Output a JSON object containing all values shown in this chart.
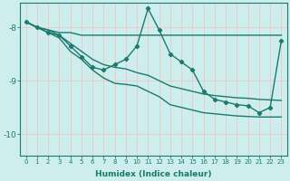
{
  "xlabel": "Humidex (Indice chaleur)",
  "background_color": "#cdeeed",
  "grid_color": "#f5c0c0",
  "line_color": "#1a7a6e",
  "xlim": [
    -0.5,
    23.5
  ],
  "ylim": [
    -10.4,
    -7.55
  ],
  "yticks": [
    -10,
    -9,
    -8
  ],
  "xticks": [
    0,
    1,
    2,
    3,
    4,
    5,
    6,
    7,
    8,
    9,
    10,
    11,
    12,
    13,
    14,
    15,
    16,
    17,
    18,
    19,
    20,
    21,
    22,
    23
  ],
  "series": [
    {
      "x": [
        0,
        1,
        2,
        3,
        4,
        5,
        6,
        7,
        8,
        9,
        10,
        11,
        12,
        13,
        14,
        15,
        16,
        17,
        18,
        19,
        20,
        21,
        22,
        23
      ],
      "y": [
        -7.9,
        -8.0,
        -8.05,
        -8.1,
        -8.1,
        -8.15,
        -8.15,
        -8.15,
        -8.15,
        -8.15,
        -8.15,
        -8.15,
        -8.15,
        -8.15,
        -8.15,
        -8.15,
        -8.15,
        -8.15,
        -8.15,
        -8.15,
        -8.15,
        -8.15,
        -8.15,
        -8.15
      ],
      "has_markers": false,
      "linewidth": 1.0
    },
    {
      "x": [
        0,
        1,
        2,
        3,
        4,
        5,
        6,
        7,
        8,
        9,
        10,
        11,
        12,
        13,
        14,
        15,
        16,
        17,
        18,
        19,
        20,
        21,
        22,
        23
      ],
      "y": [
        -7.9,
        -8.0,
        -8.05,
        -8.15,
        -8.3,
        -8.45,
        -8.6,
        -8.7,
        -8.75,
        -8.78,
        -8.85,
        -8.9,
        -9.0,
        -9.1,
        -9.15,
        -9.2,
        -9.25,
        -9.28,
        -9.3,
        -9.32,
        -9.33,
        -9.35,
        -9.36,
        -9.37
      ],
      "has_markers": false,
      "linewidth": 1.0
    },
    {
      "x": [
        0,
        1,
        2,
        3,
        4,
        5,
        6,
        7,
        8,
        9,
        10,
        11,
        12,
        13,
        14,
        15,
        16,
        17,
        18,
        19,
        20,
        21,
        22,
        23
      ],
      "y": [
        -7.9,
        -8.0,
        -8.1,
        -8.2,
        -8.45,
        -8.6,
        -8.8,
        -8.95,
        -9.05,
        -9.07,
        -9.1,
        -9.2,
        -9.3,
        -9.45,
        -9.5,
        -9.55,
        -9.6,
        -9.62,
        -9.64,
        -9.66,
        -9.67,
        -9.68,
        -9.68,
        -9.68
      ],
      "has_markers": false,
      "linewidth": 1.0
    },
    {
      "x": [
        0,
        1,
        2,
        3,
        4,
        5,
        6,
        7,
        8,
        9,
        10,
        11,
        12,
        13,
        14,
        15,
        16,
        17,
        18,
        19,
        20,
        21,
        22,
        23
      ],
      "y": [
        -7.9,
        -8.0,
        -8.1,
        -8.15,
        -8.35,
        -8.55,
        -8.75,
        -8.8,
        -8.7,
        -8.6,
        -8.35,
        -7.65,
        -8.05,
        -8.5,
        -8.65,
        -8.8,
        -9.2,
        -9.35,
        -9.4,
        -9.45,
        -9.47,
        -9.6,
        -9.5,
        -8.25
      ],
      "has_markers": true,
      "linewidth": 1.0
    }
  ]
}
